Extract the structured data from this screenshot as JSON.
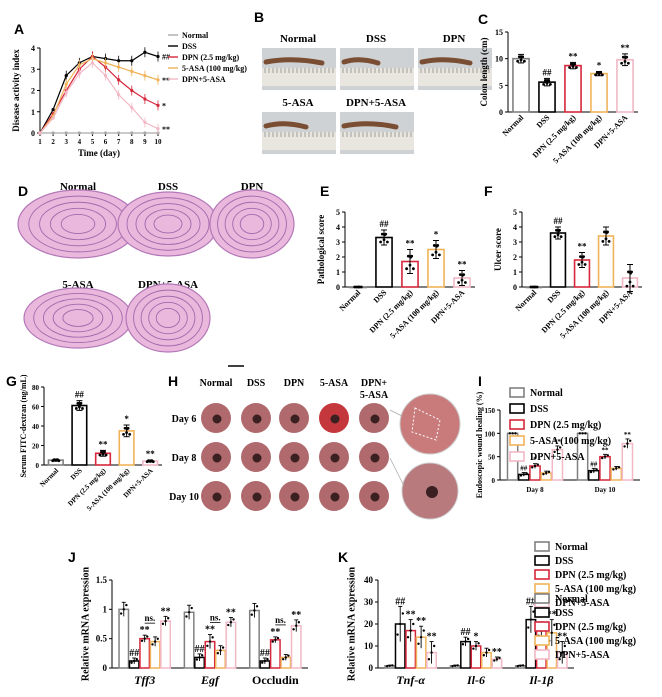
{
  "colors": {
    "Normal": "#808080",
    "DSS": "#000000",
    "DPN": "#d6273b",
    "ASA": "#f0b35a",
    "COMB": "#f2b8c6"
  },
  "groups_short": [
    "Normal",
    "DSS",
    "DPN (2.5 mg/kg)",
    "5-ASA (100 mg/kg)",
    "DPN+5-ASA"
  ],
  "groups_short2": [
    "Normal",
    "DSS",
    "DPN",
    "5-ASA",
    "DPN+5-ASA"
  ],
  "image_panels": {
    "B": {
      "labels": [
        "Normal",
        "DSS",
        "DPN",
        "5-ASA",
        "DPN+5-ASA"
      ]
    },
    "D": {
      "labels": [
        "Normal",
        "DSS",
        "DPN",
        "5-ASA",
        "DPN+5-ASA"
      ]
    },
    "H": {
      "col_labels": [
        "Normal",
        "DSS",
        "DPN",
        "5-ASA",
        "DPN+",
        "5-ASA"
      ],
      "row_labels": [
        "Day 6",
        "Day 8",
        "Day 10"
      ]
    }
  },
  "chart_data": [
    {
      "panel": "A",
      "type": "line",
      "ylabel": "Disease activity index",
      "xlabel": "Time (day)",
      "x": [
        1,
        2,
        3,
        4,
        5,
        6,
        7,
        8,
        9,
        10
      ],
      "ylim": [
        0,
        4
      ],
      "yticks": [
        0,
        1,
        2,
        3,
        4
      ],
      "series": [
        {
          "name": "Normal",
          "key": "Normal",
          "values": [
            0,
            0,
            0,
            0,
            0,
            0,
            0,
            0,
            0,
            0
          ]
        },
        {
          "name": "DSS",
          "key": "DSS",
          "values": [
            0,
            1.1,
            2.7,
            3.3,
            3.6,
            3.5,
            3.4,
            3.4,
            3.8,
            3.6
          ],
          "sig": "##"
        },
        {
          "name": "DPN (2.5 mg/kg)",
          "key": "DPN",
          "values": [
            0,
            0.9,
            2.0,
            3.0,
            3.6,
            3.1,
            2.5,
            2.0,
            1.6,
            1.3
          ],
          "sig": "*"
        },
        {
          "name": "5-ASA (100 mg/kg)",
          "key": "ASA",
          "values": [
            0,
            0.8,
            2.3,
            3.2,
            3.5,
            3.3,
            3.1,
            2.9,
            2.7,
            2.5
          ],
          "sig": "**"
        },
        {
          "name": "DPN+5-ASA",
          "key": "COMB",
          "values": [
            0,
            0.7,
            1.9,
            2.8,
            3.3,
            2.7,
            1.8,
            1.2,
            0.5,
            0.2
          ],
          "sig": "**"
        }
      ]
    },
    {
      "panel": "C",
      "type": "bar",
      "ylabel": "Colon length (cm)",
      "ylim": [
        0,
        15
      ],
      "yticks": [
        0,
        5,
        10,
        15
      ],
      "categories": [
        "Normal",
        "DSS",
        "DPN (2.5 mg/kg)",
        "5-ASA (100 mg/kg)",
        "DPN+5-ASA"
      ],
      "values": [
        10.0,
        5.6,
        8.7,
        7.2,
        9.8
      ],
      "err": [
        0.8,
        0.7,
        0.6,
        0.4,
        1.1
      ],
      "sig": [
        "",
        "##",
        "**",
        "*",
        "**"
      ]
    },
    {
      "panel": "E",
      "type": "bar",
      "ylabel": "Pathological score",
      "ylim": [
        0,
        5
      ],
      "yticks": [
        0,
        1,
        2,
        3,
        4,
        5
      ],
      "categories": [
        "Normal",
        "DSS",
        "DPN (2.5 mg/kg)",
        "5-ASA (100 mg/kg)",
        "DPN+5-ASA"
      ],
      "values": [
        0,
        3.3,
        1.7,
        2.5,
        0.6
      ],
      "err": [
        0,
        0.5,
        0.8,
        0.6,
        0.5
      ],
      "sig": [
        "",
        "##",
        "**",
        "*",
        "**"
      ]
    },
    {
      "panel": "F",
      "type": "bar",
      "ylabel": "Ulcer score",
      "ylim": [
        0,
        5
      ],
      "yticks": [
        0,
        1,
        2,
        3,
        4,
        5
      ],
      "categories": [
        "Normal",
        "DSS",
        "DPN (2.5 mg/kg)",
        "5-ASA (100 mg/kg)",
        "DPN+5-ASA"
      ],
      "values": [
        0,
        3.6,
        1.8,
        3.4,
        0.6
      ],
      "err": [
        0,
        0.4,
        0.5,
        0.6,
        0.9
      ],
      "sig": [
        "",
        "##",
        "**",
        "",
        ""
      ]
    },
    {
      "panel": "G",
      "type": "bar",
      "ylabel": "Serum FITC-dextran (ng/mL)",
      "ylim": [
        0,
        80
      ],
      "yticks": [
        0,
        20,
        40,
        60,
        80
      ],
      "categories": [
        "Normal",
        "DSS",
        "DPN (2.5 mg/kg)",
        "5-ASA (100 mg/kg)",
        "DPN+5-ASA"
      ],
      "values": [
        5,
        61,
        12,
        35,
        4
      ],
      "err": [
        1,
        5,
        3,
        6,
        1
      ],
      "sig": [
        "",
        "##",
        "**",
        "*",
        "**"
      ]
    },
    {
      "panel": "I",
      "type": "bar",
      "ylabel": "Endoscopic wound healing (%)",
      "ylim": [
        0,
        150
      ],
      "yticks": [
        0,
        50,
        100,
        150
      ],
      "categories": [
        "Day 8",
        "Day 10"
      ],
      "series": [
        {
          "name": "Normal",
          "key": "Normal",
          "values": [
            100,
            100
          ],
          "err": [
            0,
            0
          ],
          "sig": [
            "",
            ""
          ]
        },
        {
          "name": "DSS",
          "key": "DSS",
          "values": [
            12,
            20
          ],
          "err": [
            4,
            5
          ],
          "sig": [
            "##",
            "##"
          ]
        },
        {
          "name": "DPN (2.5 mg/kg)",
          "key": "DPN",
          "values": [
            30,
            50
          ],
          "err": [
            5,
            5
          ],
          "sig": [
            "*",
            "**"
          ]
        },
        {
          "name": "5-ASA (100 mg/kg)",
          "key": "ASA",
          "values": [
            15,
            25
          ],
          "err": [
            4,
            4
          ],
          "sig": [
            "",
            ""
          ]
        },
        {
          "name": "DPN+5-ASA",
          "key": "COMB",
          "values": [
            65,
            78
          ],
          "err": [
            8,
            10
          ],
          "sig": [
            "**",
            "**"
          ]
        }
      ]
    },
    {
      "panel": "J",
      "type": "bar",
      "ylabel": "Relative mRNA expression",
      "ylim": [
        0,
        1.5
      ],
      "yticks": [
        0,
        0.5,
        1.0,
        1.5
      ],
      "categories": [
        "Tff3",
        "Egf",
        "Occludin"
      ],
      "italic": [
        true,
        true,
        false
      ],
      "series": [
        {
          "name": "Normal",
          "key": "Normal",
          "values": [
            1.0,
            0.95,
            0.98
          ],
          "err": [
            0.12,
            0.12,
            0.12
          ],
          "sig": [
            "",
            "",
            ""
          ]
        },
        {
          "name": "DSS",
          "key": "DSS",
          "values": [
            0.12,
            0.18,
            0.12
          ],
          "err": [
            0.05,
            0.06,
            0.05
          ],
          "sig": [
            "##",
            "##",
            "##"
          ]
        },
        {
          "name": "DPN (2.5 mg/kg)",
          "key": "DPN",
          "values": [
            0.5,
            0.45,
            0.48
          ],
          "err": [
            0.06,
            0.12,
            0.05
          ],
          "sig": [
            "**",
            "**",
            "**"
          ]
        },
        {
          "name": "5-ASA (100 mg/kg)",
          "key": "ASA",
          "values": [
            0.45,
            0.3,
            0.18
          ],
          "err": [
            0.08,
            0.08,
            0.05
          ],
          "sig": [
            "",
            "",
            ""
          ]
        },
        {
          "name": "DPN+5-ASA",
          "key": "COMB",
          "values": [
            0.8,
            0.78,
            0.72
          ],
          "err": [
            0.08,
            0.08,
            0.1
          ],
          "sig": [
            "**",
            "**",
            "**"
          ]
        }
      ],
      "ns": [
        "ns.",
        "ns.",
        "ns."
      ]
    },
    {
      "panel": "K",
      "type": "bar",
      "ylabel": "Relative mRNA expression",
      "ylim": [
        0,
        40
      ],
      "yticks": [
        0,
        10,
        20,
        30,
        40
      ],
      "categories": [
        "Tnf-α",
        "Il-6",
        "Il-1β"
      ],
      "italic": [
        true,
        true,
        true
      ],
      "series": [
        {
          "name": "Normal",
          "key": "Normal",
          "values": [
            1,
            1,
            1
          ],
          "err": [
            0.3,
            0.3,
            0.3
          ],
          "sig": [
            "",
            "",
            ""
          ]
        },
        {
          "name": "DSS",
          "key": "DSS",
          "values": [
            20,
            12,
            22
          ],
          "err": [
            8,
            2,
            6
          ],
          "sig": [
            "##",
            "##",
            "##"
          ]
        },
        {
          "name": "DPN (2.5 mg/kg)",
          "key": "DPN",
          "values": [
            17,
            10,
            17
          ],
          "err": [
            5,
            2,
            4
          ],
          "sig": [
            "**",
            "*",
            "**"
          ]
        },
        {
          "name": "5-ASA (100 mg/kg)",
          "key": "ASA",
          "values": [
            14,
            7,
            16
          ],
          "err": [
            5,
            2,
            6
          ],
          "sig": [
            "**",
            "",
            "**"
          ]
        },
        {
          "name": "DPN+5-ASA",
          "key": "COMB",
          "values": [
            7,
            4,
            7
          ],
          "err": [
            5,
            1,
            5
          ],
          "sig": [
            "**",
            "**",
            "**"
          ]
        }
      ]
    }
  ]
}
